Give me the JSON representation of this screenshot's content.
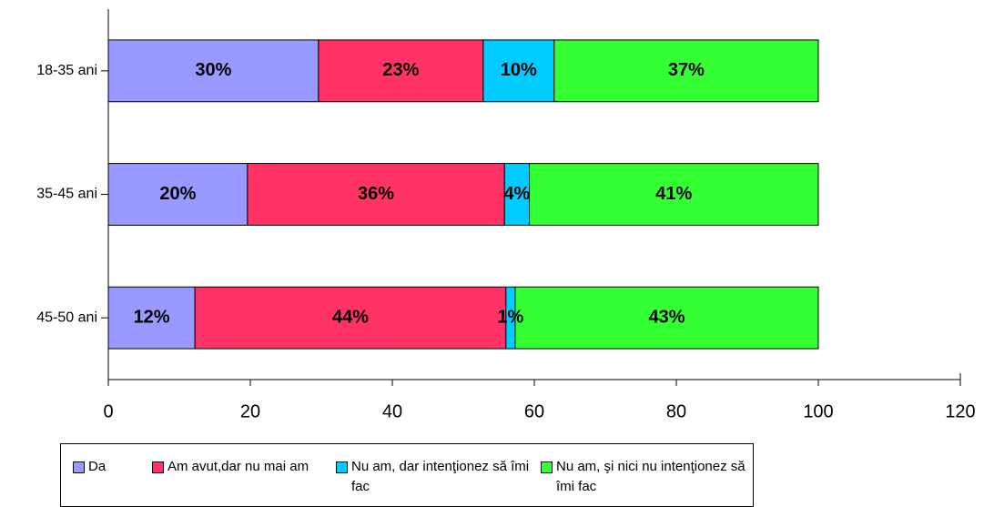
{
  "chart_data": {
    "type": "stacked_barh",
    "categories": [
      "18-35 ani",
      "35-45 ani",
      "45-50 ani"
    ],
    "series": [
      {
        "name": "Da",
        "color": "#9999ff",
        "values": [
          29.6,
          19.6,
          12.2
        ],
        "value_labels": [
          "30%",
          "20%",
          "12%"
        ]
      },
      {
        "name": "Am avut,dar nu mai am",
        "color": "#ff3366",
        "values": [
          23.2,
          36.2,
          43.8
        ],
        "value_labels": [
          "23%",
          "36%",
          "44%"
        ]
      },
      {
        "name": "Nu am, dar intenţionez să îmi fac",
        "color": "#00ccff",
        "values": [
          10.0,
          3.5,
          1.3
        ],
        "value_labels": [
          "10%",
          "4%",
          "1%"
        ]
      },
      {
        "name": "Nu am, şi nici nu intenţionez să îmi fac",
        "color": "#33ff33",
        "values": [
          37.2,
          40.7,
          42.7
        ],
        "value_labels": [
          "37%",
          "41%",
          "43%"
        ]
      }
    ],
    "xlim": [
      0,
      120
    ],
    "xticks": [
      0,
      20,
      40,
      60,
      80,
      100,
      120
    ],
    "grid": false,
    "legend": "bottom"
  }
}
